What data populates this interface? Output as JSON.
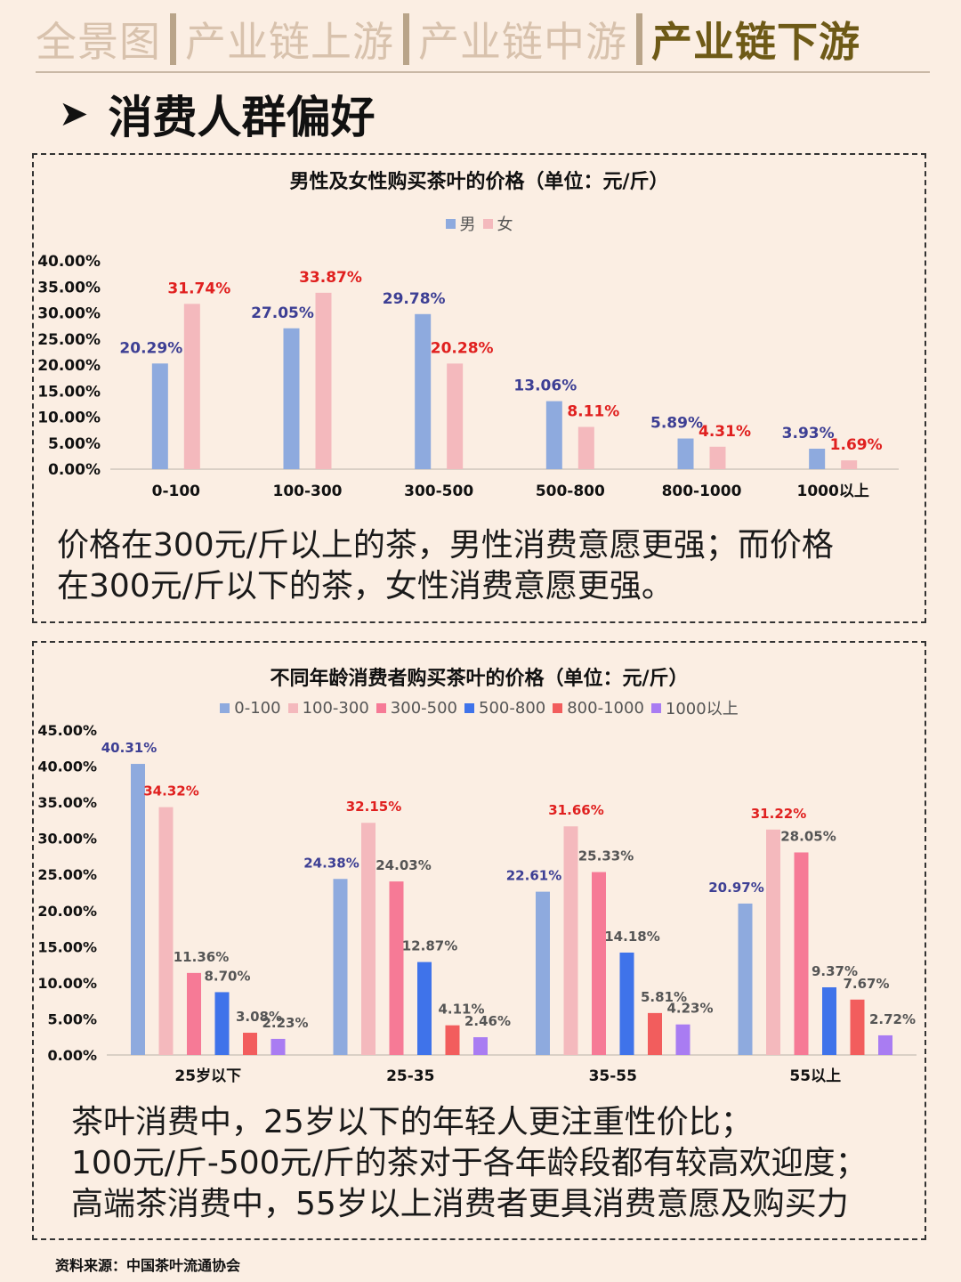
{
  "tabs": [
    "全景图",
    "产业链上游",
    "产业链中游",
    "产业链下游"
  ],
  "active_tab": 3,
  "section_title": "消费人群偏好",
  "chart1_note": [
    "价格在300元/斤以上的茶，男性消费意愿更强；而价格",
    "在300元/斤以下的茶，女性消费意愿更强。"
  ],
  "chart2_note": [
    "茶叶消费中，25岁以下的年轻人更注重性价比；",
    "100元/斤-500元/斤的茶对于各年龄段都有较高欢迎度；",
    "高端茶消费中，55岁以上消费者更具消费意愿及购买力"
  ],
  "source": "资料来源：中国茶叶流通协会",
  "chart_data": [
    {
      "type": "bar",
      "title": "男性及女性购买茶叶的价格（单位：元/斤）",
      "legend_position": "top",
      "categories": [
        "0-100",
        "100-300",
        "300-500",
        "500-800",
        "800-1000",
        "1000以上"
      ],
      "ylim": [
        0,
        40
      ],
      "yticks": [
        "0.00%",
        "5.00%",
        "10.00%",
        "15.00%",
        "20.00%",
        "25.00%",
        "30.00%",
        "35.00%",
        "40.00%"
      ],
      "series": [
        {
          "name": "男",
          "color": "#8eaade",
          "label_color": "#3d3f94",
          "values": [
            20.29,
            27.05,
            29.78,
            13.06,
            5.89,
            3.93
          ],
          "labels": [
            "20.29%",
            "27.05%",
            "29.78%",
            "13.06%",
            "5.89%",
            "3.93%"
          ]
        },
        {
          "name": "女",
          "color": "#f4b9bd",
          "label_color": "#e0201f",
          "values": [
            31.74,
            33.87,
            20.28,
            8.11,
            4.31,
            1.69
          ],
          "labels": [
            "31.74%",
            "33.87%",
            "20.28%",
            "8.11%",
            "4.31%",
            "1.69%"
          ]
        }
      ]
    },
    {
      "type": "bar",
      "title": "不同年龄消费者购买茶叶的价格（单位：元/斤）",
      "legend_position": "top",
      "categories": [
        "25岁以下",
        "25-35",
        "35-55",
        "55以上"
      ],
      "ylim": [
        0,
        45
      ],
      "yticks": [
        "0.00%",
        "5.00%",
        "10.00%",
        "15.00%",
        "20.00%",
        "25.00%",
        "30.00%",
        "35.00%",
        "40.00%",
        "45.00%"
      ],
      "series": [
        {
          "name": "0-100",
          "color": "#8eaade",
          "label_color": "#3d3f94",
          "values": [
            40.31,
            24.38,
            22.61,
            20.97
          ],
          "labels": [
            "40.31%",
            "24.38%",
            "22.61%",
            "20.97%"
          ]
        },
        {
          "name": "100-300",
          "color": "#f4b9bd",
          "label_color": "#e0201f",
          "values": [
            34.32,
            32.15,
            31.66,
            31.22
          ],
          "labels": [
            "34.32%",
            "32.15%",
            "31.66%",
            "31.22%"
          ]
        },
        {
          "name": "300-500",
          "color": "#f67a96",
          "label_color": "#555555",
          "values": [
            11.36,
            24.03,
            25.33,
            28.05
          ],
          "labels": [
            "11.36%",
            "24.03%",
            "25.33%",
            "28.05%"
          ]
        },
        {
          "name": "500-800",
          "color": "#3f73ea",
          "label_color": "#555555",
          "values": [
            8.7,
            12.87,
            14.18,
            9.37
          ],
          "labels": [
            "8.70%",
            "12.87%",
            "14.18%",
            "9.37%"
          ]
        },
        {
          "name": "800-1000",
          "color": "#f25d5d",
          "label_color": "#555555",
          "values": [
            3.08,
            4.11,
            5.81,
            7.67
          ],
          "labels": [
            "3.08%",
            "4.11%",
            "5.81%",
            "7.67%"
          ]
        },
        {
          "name": "1000以上",
          "color": "#a97cf2",
          "label_color": "#555555",
          "values": [
            2.23,
            2.46,
            4.23,
            2.72
          ],
          "labels": [
            "2.23%",
            "2.46%",
            "4.23%",
            "2.72%"
          ]
        }
      ]
    }
  ]
}
